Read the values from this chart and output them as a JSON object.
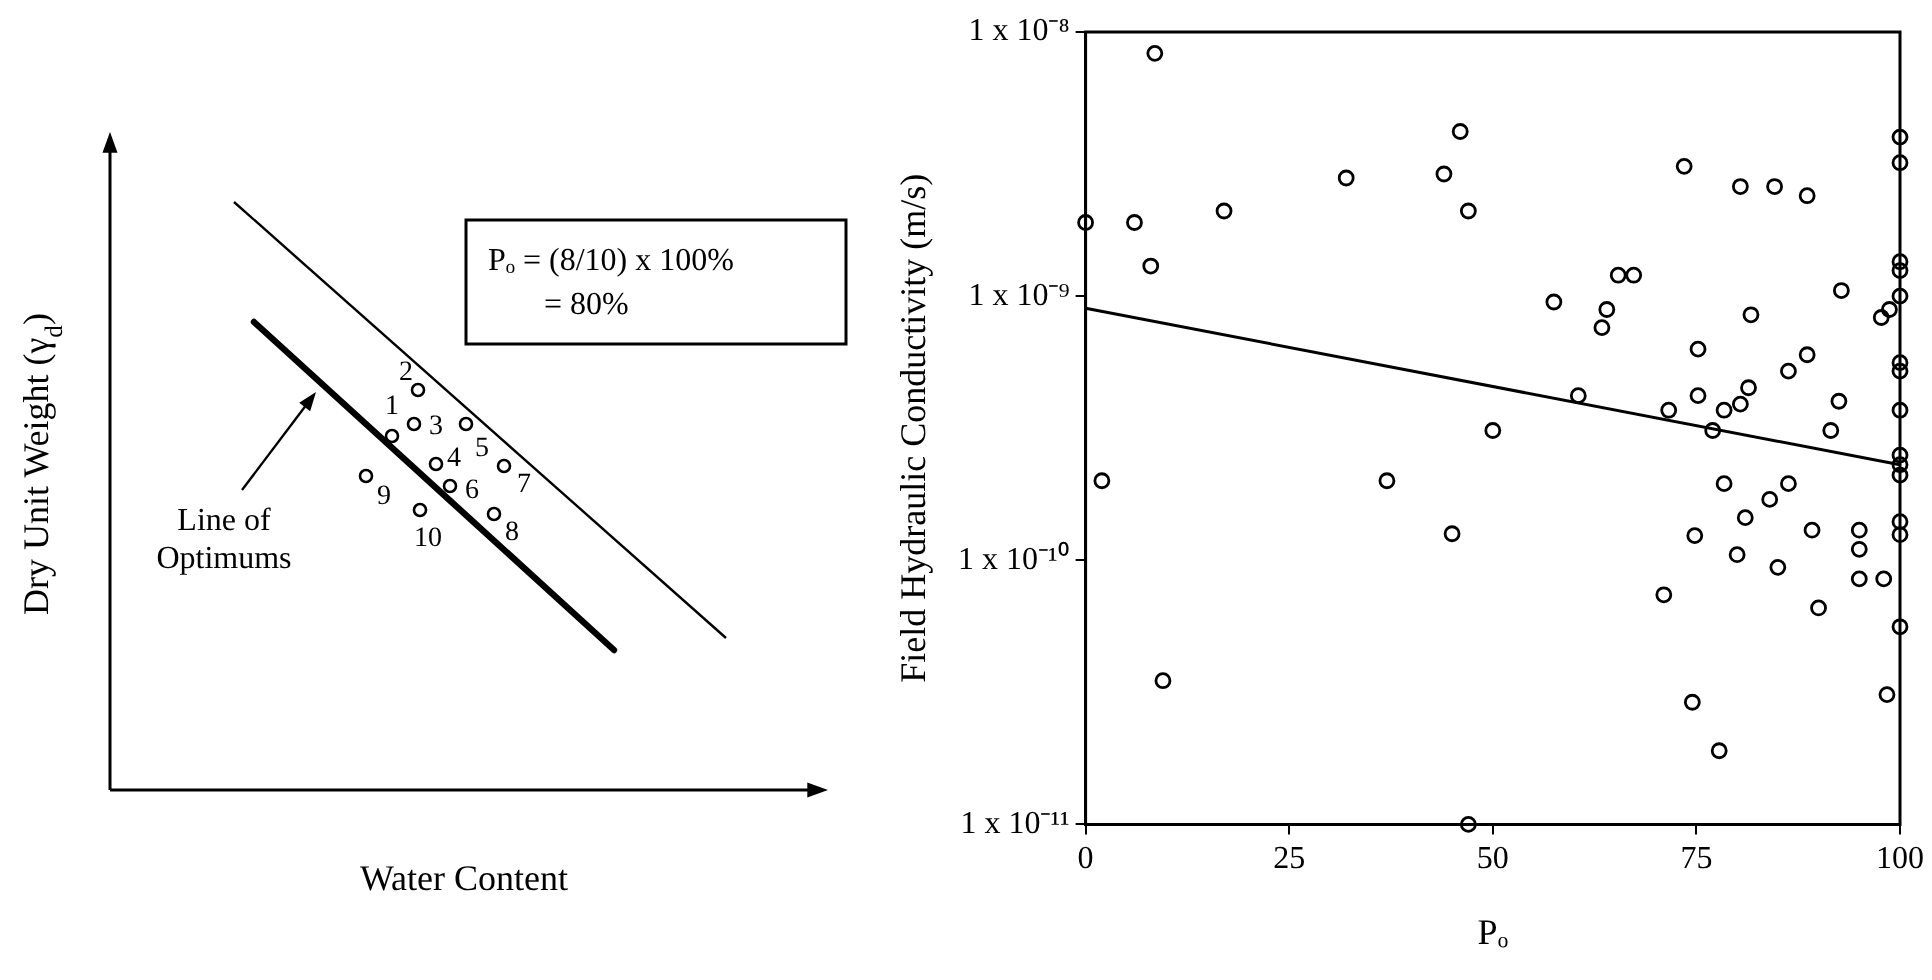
{
  "chart_data": [
    {
      "type": "other",
      "xlabel": "Water Content",
      "ylabel": "Dry Unit Weight (γ$_{d}$)",
      "annotations": [
        "Pₒ = (8/10) x 100%",
        "= 80%",
        "Line of Optimums",
        "1",
        "2",
        "3",
        "4",
        "5",
        "6",
        "7",
        "8",
        "9",
        "10"
      ]
    },
    {
      "type": "scatter",
      "xlabel": "Pₒ",
      "ylabel": "Field Hydraulic Conductivity (m/s)",
      "grid": false,
      "legend": false,
      "log": "y",
      "xlim": [
        0,
        100
      ],
      "xticks": [
        0,
        25,
        50,
        75,
        100
      ],
      "ylim": [
        1e-11,
        1e-08
      ],
      "yticks": [
        {
          "value": 1e-08,
          "label": "1 x 10⁻⁸"
        },
        {
          "value": 1e-09,
          "label": "1 x 10⁻⁹"
        },
        {
          "value": 1e-10,
          "label": "1 x 10⁻¹⁰"
        },
        {
          "value": 1e-11,
          "label": "1 x 10⁻¹¹"
        }
      ],
      "series": [
        {
          "type": "scatter",
          "marker": "circle",
          "color": "#000000",
          "x": [
            0,
            6,
            8.5,
            8,
            17,
            32,
            46,
            44,
            47,
            57.5,
            73.5,
            80.4,
            84.6,
            88.6,
            65.4,
            67.3,
            64,
            63.4,
            92.8,
            81.7,
            75.2,
            88.6,
            86.3,
            60.5,
            75.2,
            71.6,
            78.4,
            81.4,
            80.4,
            92.5,
            91.5,
            77,
            50,
            97.7,
            98.7,
            100,
            100,
            100,
            100,
            100,
            100,
            100,
            100,
            100,
            100,
            100,
            2,
            37,
            45,
            9.5,
            47,
            78.4,
            86.3,
            84,
            81,
            74.8,
            89.2,
            95,
            95,
            80,
            85,
            95,
            98,
            71,
            90,
            74.5,
            77.8,
            98.4,
            100,
            100,
            100
          ],
          "values": [
            1.9e-09,
            1.9e-09,
            8.3e-09,
            1.3e-09,
            2.1e-09,
            2.8e-09,
            4.2e-09,
            2.9e-09,
            2.1e-09,
            9.5e-10,
            3.1e-09,
            2.6e-09,
            2.6e-09,
            2.4e-09,
            1.2e-09,
            1.2e-09,
            8.9e-10,
            7.6e-10,
            1.05e-09,
            8.5e-10,
            6.3e-10,
            6e-10,
            5.2e-10,
            4.2e-10,
            4.2e-10,
            3.7e-10,
            3.7e-10,
            4.5e-10,
            3.9e-10,
            4e-10,
            3.1e-10,
            3.1e-10,
            3.1e-10,
            8.3e-10,
            8.9e-10,
            4e-09,
            3.2e-09,
            1.35e-09,
            1.25e-09,
            1e-09,
            5.6e-10,
            5.2e-10,
            3.7e-10,
            2.3e-10,
            2.1e-10,
            2.5e-10,
            2e-10,
            2e-10,
            1.26e-10,
            3.5e-11,
            1e-11,
            1.95e-10,
            1.95e-10,
            1.7e-10,
            1.45e-10,
            1.24e-10,
            1.3e-10,
            1.3e-10,
            1.1e-10,
            1.05e-10,
            9.4e-11,
            8.5e-11,
            8.5e-11,
            7.4e-11,
            6.6e-11,
            2.9e-11,
            1.9e-11,
            3.1e-11,
            1.4e-10,
            1.25e-10,
            5.6e-11
          ]
        },
        {
          "type": "line",
          "marker": "none",
          "color": "#000000",
          "x": [
            0,
            100
          ],
          "values": [
            9e-10,
            2.3e-10
          ]
        }
      ]
    }
  ]
}
